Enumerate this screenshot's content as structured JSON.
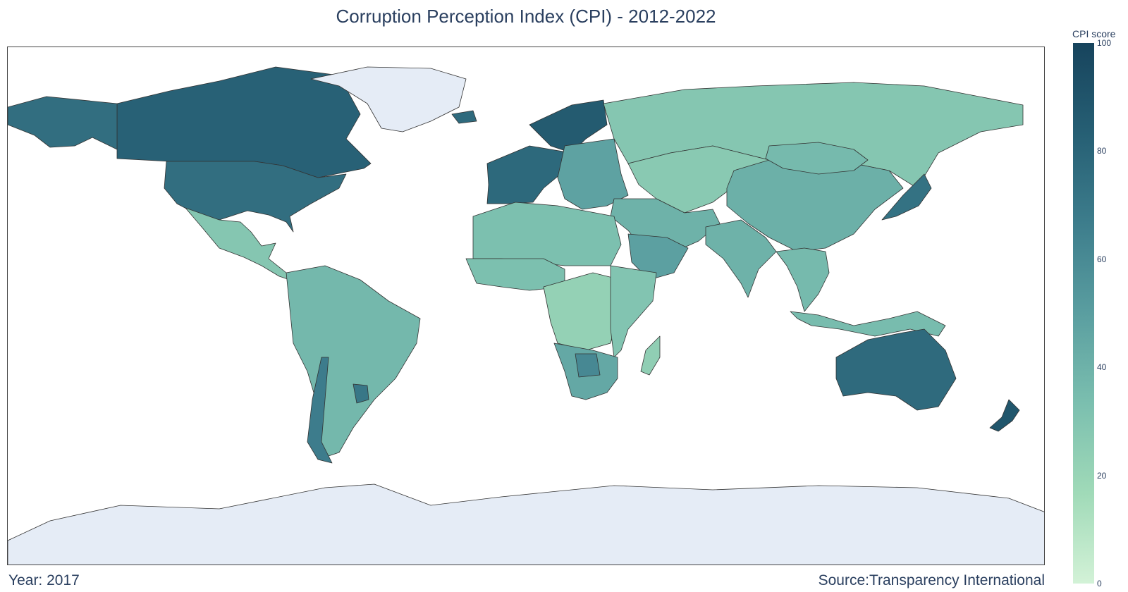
{
  "chart_data": {
    "type": "choropleth",
    "title": "Corruption Perception Index (CPI) - 2012-2022",
    "year_label": "Year: 2017",
    "source_label": "Source:Transparency International",
    "projection": "equirectangular",
    "colorbar": {
      "title": "CPI score",
      "range": [
        0,
        100
      ],
      "ticks": [
        0,
        20,
        40,
        60,
        80,
        100
      ],
      "colorscale": [
        "#d3f2d7",
        "#a0dab8",
        "#7bbfaf",
        "#5a9ea0",
        "#3d7d8c",
        "#265f74",
        "#17445d"
      ]
    },
    "no_data_color": "#e5ecf6",
    "regions": [
      {
        "name": "Canada",
        "score": 82
      },
      {
        "name": "USA",
        "score": 75
      },
      {
        "name": "Alaska",
        "score": 75
      },
      {
        "name": "Greenland",
        "score": null
      },
      {
        "name": "Mexico & Central America",
        "score": 29
      },
      {
        "name": "South America",
        "score": 37
      },
      {
        "name": "Chile",
        "score": 67
      },
      {
        "name": "Uruguay",
        "score": 70
      },
      {
        "name": "Western Europe",
        "score": 78
      },
      {
        "name": "Scandinavia",
        "score": 86
      },
      {
        "name": "Iceland",
        "score": 77
      },
      {
        "name": "Eastern Europe",
        "score": 48
      },
      {
        "name": "Russia",
        "score": 29
      },
      {
        "name": "Central Asia",
        "score": 27
      },
      {
        "name": "Middle East",
        "score": 40
      },
      {
        "name": "Saudi Arabia",
        "score": 49
      },
      {
        "name": "North Africa",
        "score": 33
      },
      {
        "name": "West Africa",
        "score": 33
      },
      {
        "name": "Central Africa",
        "score": 22
      },
      {
        "name": "East Africa",
        "score": 30
      },
      {
        "name": "Southern Africa",
        "score": 45
      },
      {
        "name": "Botswana",
        "score": 61
      },
      {
        "name": "Madagascar",
        "score": 24
      },
      {
        "name": "China",
        "score": 41
      },
      {
        "name": "Mongolia",
        "score": 36
      },
      {
        "name": "India",
        "score": 40
      },
      {
        "name": "Japan",
        "score": 73
      },
      {
        "name": "Southeast Asia",
        "score": 36
      },
      {
        "name": "Indonesia & PNG",
        "score": 35
      },
      {
        "name": "Australia",
        "score": 77
      },
      {
        "name": "New Zealand",
        "score": 89
      },
      {
        "name": "Antarctica",
        "score": null
      }
    ]
  }
}
